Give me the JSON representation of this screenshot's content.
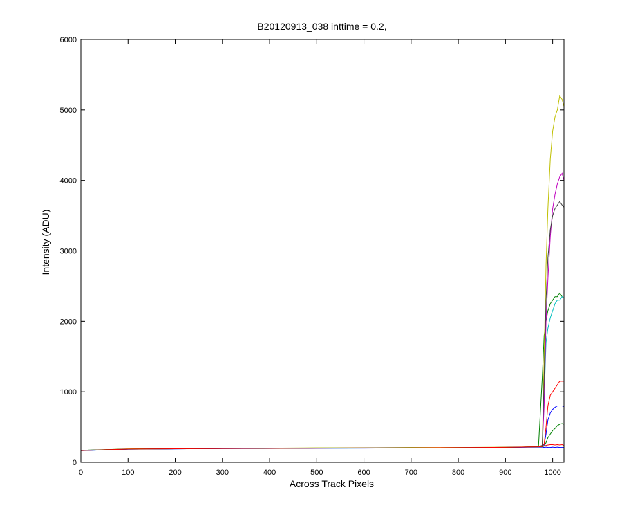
{
  "chart_data": {
    "type": "line",
    "title": "B20120913_038 inttime = 0.2,",
    "x_label": "Across Track Pixels",
    "y_label": "Intensity (ADU)",
    "x": [
      0,
      100,
      200,
      300,
      400,
      500,
      600,
      700,
      800,
      900,
      970,
      978,
      982,
      986,
      990,
      995,
      1000,
      1005,
      1010,
      1015,
      1020,
      1024
    ],
    "xlim": [
      0,
      1024
    ],
    "xticks": [
      0,
      100,
      200,
      300,
      400,
      500,
      600,
      700,
      800,
      900,
      1000
    ],
    "ylim": [
      0,
      6000
    ],
    "yticks": [
      0,
      1000,
      2000,
      3000,
      4000,
      5000,
      6000
    ],
    "grid": false,
    "series": [
      {
        "color": "#0000ff",
        "values": [
          165,
          185,
          190,
          195,
          195,
          200,
          200,
          205,
          205,
          210,
          220,
          230,
          250,
          400,
          600,
          700,
          750,
          780,
          800,
          800,
          800,
          790
        ]
      },
      {
        "color": "#008000",
        "values": [
          170,
          188,
          192,
          196,
          198,
          202,
          203,
          206,
          207,
          212,
          220,
          1200,
          1800,
          2000,
          2150,
          2250,
          2300,
          2350,
          2350,
          2400,
          2350,
          2330
        ]
      },
      {
        "color": "#ff0000",
        "values": [
          168,
          186,
          191,
          197,
          197,
          201,
          202,
          205,
          206,
          211,
          220,
          230,
          260,
          500,
          800,
          950,
          1000,
          1050,
          1100,
          1150,
          1150,
          1150
        ]
      },
      {
        "color": "#00bfbf",
        "values": [
          166,
          184,
          190,
          194,
          196,
          199,
          201,
          204,
          206,
          210,
          220,
          230,
          900,
          1700,
          1900,
          2050,
          2150,
          2250,
          2300,
          2300,
          2350,
          2330
        ]
      },
      {
        "color": "#bf00bf",
        "values": [
          167,
          187,
          192,
          196,
          197,
          200,
          202,
          206,
          207,
          211,
          220,
          240,
          800,
          2000,
          2600,
          3200,
          3600,
          3800,
          3950,
          4050,
          4100,
          4000
        ]
      },
      {
        "color": "#bfbf00",
        "values": [
          165,
          190,
          195,
          200,
          200,
          205,
          205,
          210,
          210,
          215,
          220,
          240,
          1500,
          2800,
          3600,
          4300,
          4700,
          4900,
          5000,
          5200,
          5150,
          5050
        ]
      },
      {
        "color": "#404040",
        "values": [
          169,
          186,
          191,
          195,
          198,
          201,
          203,
          205,
          208,
          212,
          220,
          240,
          1200,
          2300,
          2900,
          3300,
          3500,
          3600,
          3650,
          3700,
          3650,
          3620
        ]
      },
      {
        "color": "#0000ff",
        "values": [
          166,
          185,
          190,
          195,
          196,
          200,
          201,
          205,
          206,
          210,
          215,
          215,
          210,
          215,
          210,
          210,
          215,
          210,
          215,
          210,
          210,
          210
        ]
      },
      {
        "color": "#008000",
        "values": [
          168,
          187,
          191,
          196,
          197,
          201,
          202,
          206,
          207,
          211,
          220,
          220,
          230,
          280,
          350,
          400,
          450,
          480,
          520,
          540,
          550,
          540
        ]
      },
      {
        "color": "#ff0000",
        "values": [
          167,
          186,
          192,
          195,
          198,
          200,
          203,
          204,
          207,
          212,
          220,
          225,
          230,
          240,
          245,
          250,
          250,
          245,
          250,
          245,
          250,
          240
        ]
      }
    ]
  }
}
